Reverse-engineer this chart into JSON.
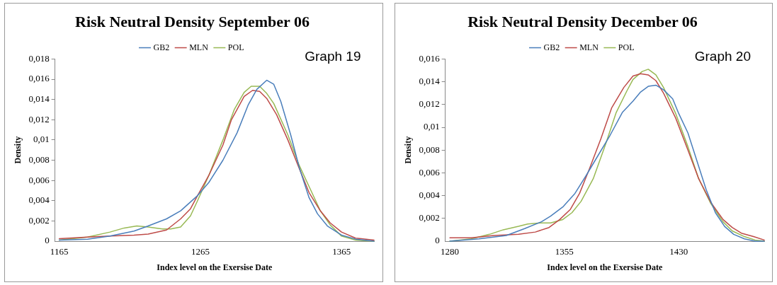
{
  "chart_data": [
    {
      "type": "line",
      "title": "Risk Neutral Density September 06",
      "xlabel": "Index level on the Exersise Date",
      "ylabel": "Density",
      "annotations": [
        "Graph 19"
      ],
      "legend": "top",
      "grid": false,
      "marker": "none",
      "xlim": [
        1162,
        1388
      ],
      "xticks": [
        1165,
        1265,
        1365
      ],
      "ylim": [
        0,
        0.018
      ],
      "yticks": [
        0,
        {
          "value": 0.002,
          "label": "0,002"
        },
        {
          "value": 0.004,
          "label": "0,004"
        },
        {
          "value": 0.006,
          "label": "0,006"
        },
        {
          "value": 0.008,
          "label": "0,008"
        },
        {
          "value": 0.01,
          "label": "0,01"
        },
        {
          "value": 0.012,
          "label": "0,012"
        },
        {
          "value": 0.014,
          "label": "0,014"
        },
        {
          "value": 0.016,
          "label": "0,016"
        },
        {
          "value": 0.018,
          "label": "0,018"
        }
      ],
      "series": [
        {
          "name": "GB2",
          "color": "#4a7ebb",
          "x": [
            1165,
            1185,
            1201,
            1218,
            1228,
            1241,
            1251,
            1263,
            1271,
            1281,
            1291,
            1299,
            1305,
            1312,
            1317,
            1322,
            1329,
            1335,
            1342,
            1348,
            1355,
            1365,
            1375,
            1388
          ],
          "values": [
            0.0001,
            0.0002,
            0.0005,
            0.001,
            0.0015,
            0.0022,
            0.003,
            0.0045,
            0.0058,
            0.008,
            0.0107,
            0.0135,
            0.015,
            0.0159,
            0.0155,
            0.0138,
            0.0105,
            0.0073,
            0.0043,
            0.0027,
            0.0015,
            0.0006,
            0.0002,
            0
          ]
        },
        {
          "name": "MLN",
          "color": "#be4b48",
          "x": [
            1165,
            1185,
            1201,
            1218,
            1228,
            1241,
            1251,
            1258,
            1263,
            1271,
            1281,
            1287,
            1296,
            1302,
            1307,
            1312,
            1319,
            1327,
            1335,
            1342,
            1350,
            1357,
            1365,
            1375,
            1388
          ],
          "values": [
            0.00025,
            0.0004,
            0.0005,
            0.0006,
            0.0007,
            0.0011,
            0.0022,
            0.0032,
            0.0045,
            0.0065,
            0.0095,
            0.012,
            0.0143,
            0.0149,
            0.0148,
            0.0141,
            0.0125,
            0.01,
            0.0072,
            0.0048,
            0.003,
            0.0018,
            0.0009,
            0.0003,
            0.0001
          ]
        },
        {
          "name": "POL",
          "color": "#98b954",
          "x": [
            1165,
            1185,
            1201,
            1211,
            1220,
            1228,
            1238,
            1244,
            1251,
            1258,
            1263,
            1271,
            1281,
            1289,
            1296,
            1301,
            1307,
            1312,
            1317,
            1327,
            1335,
            1344,
            1350,
            1357,
            1365,
            1375,
            1388
          ],
          "values": [
            0.0001,
            0.0004,
            0.0009,
            0.0013,
            0.0015,
            0.0014,
            0.0012,
            0.0012,
            0.0014,
            0.0025,
            0.004,
            0.0065,
            0.01,
            0.013,
            0.0147,
            0.0153,
            0.0153,
            0.0146,
            0.0136,
            0.0105,
            0.0075,
            0.0048,
            0.003,
            0.0016,
            0.0005,
            0.0001,
            0
          ]
        }
      ]
    },
    {
      "type": "line",
      "title": "Risk Neutral Density December 06",
      "xlabel": "Index level on the Exersise Date",
      "ylabel": "Density",
      "annotations": [
        "Graph 20"
      ],
      "legend": "top",
      "grid": false,
      "marker": "none",
      "xlim": [
        1277,
        1486
      ],
      "xticks": [
        1280,
        1355,
        1430
      ],
      "ylim": [
        0,
        0.016
      ],
      "yticks": [
        0,
        {
          "value": 0.002,
          "label": "0,002"
        },
        {
          "value": 0.004,
          "label": "0,004"
        },
        {
          "value": 0.006,
          "label": "0,006"
        },
        {
          "value": 0.008,
          "label": "0,008"
        },
        {
          "value": 0.01,
          "label": "0,01"
        },
        {
          "value": 0.012,
          "label": "0,012"
        },
        {
          "value": 0.014,
          "label": "0,014"
        },
        {
          "value": 0.016,
          "label": "0,016"
        }
      ],
      "series": [
        {
          "name": "GB2",
          "color": "#4a7ebb",
          "x": [
            1280,
            1299,
            1317,
            1329,
            1340,
            1346,
            1354,
            1362,
            1369,
            1377,
            1385,
            1393,
            1400,
            1405,
            1410,
            1415,
            1420,
            1426,
            1430,
            1436,
            1442,
            1448,
            1454,
            1460,
            1466,
            1473,
            1480,
            1486
          ],
          "values": [
            0,
            0.0002,
            0.0005,
            0.0011,
            0.0017,
            0.0022,
            0.003,
            0.0042,
            0.0057,
            0.0075,
            0.0093,
            0.0113,
            0.0123,
            0.0131,
            0.0136,
            0.0137,
            0.0133,
            0.0125,
            0.0112,
            0.0095,
            0.007,
            0.0045,
            0.0025,
            0.0013,
            0.0006,
            0.0002,
            0,
            0
          ]
        },
        {
          "name": "MLN",
          "color": "#be4b48",
          "x": [
            1280,
            1294,
            1309,
            1325,
            1336,
            1345,
            1352,
            1359,
            1365,
            1371,
            1379,
            1386,
            1394,
            1400,
            1405,
            1410,
            1415,
            1420,
            1428,
            1436,
            1443,
            1451,
            1459,
            1465,
            1471,
            1479,
            1486
          ],
          "values": [
            0.0003,
            0.0003,
            0.0005,
            0.0006,
            0.0008,
            0.0012,
            0.0019,
            0.0028,
            0.0042,
            0.0062,
            0.009,
            0.0117,
            0.0135,
            0.0145,
            0.0147,
            0.0146,
            0.0141,
            0.013,
            0.0108,
            0.008,
            0.0055,
            0.0034,
            0.0019,
            0.0012,
            0.0007,
            0.0004,
            0.0001
          ]
        },
        {
          "name": "POL",
          "color": "#98b954",
          "x": [
            1280,
            1294,
            1306,
            1315,
            1325,
            1331,
            1339,
            1346,
            1354,
            1360,
            1366,
            1374,
            1382,
            1389,
            1396,
            1400,
            1406,
            1410,
            1415,
            1420,
            1428,
            1436,
            1443,
            1451,
            1459,
            1465,
            1473,
            1480,
            1486
          ],
          "values": [
            0,
            0.0002,
            0.0006,
            0.001,
            0.0013,
            0.0015,
            0.0016,
            0.0016,
            0.0019,
            0.0025,
            0.0035,
            0.0055,
            0.0085,
            0.0113,
            0.0132,
            0.0142,
            0.0149,
            0.0151,
            0.0146,
            0.0135,
            0.0112,
            0.0083,
            0.0055,
            0.0033,
            0.0017,
            0.0009,
            0.0004,
            0.0001,
            0
          ]
        }
      ]
    }
  ]
}
